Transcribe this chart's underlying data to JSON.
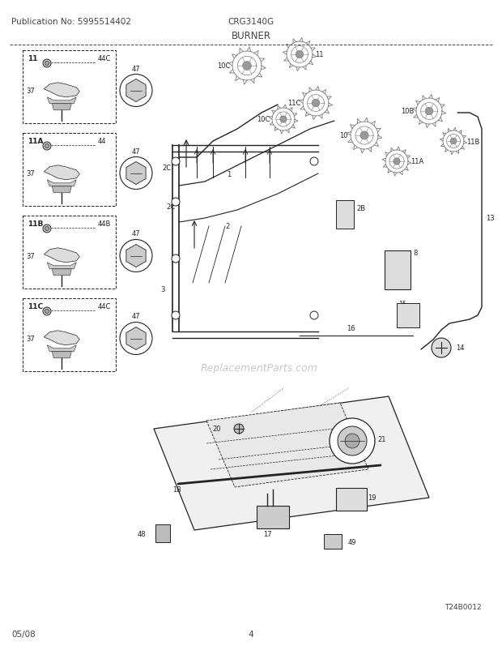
{
  "title": "BURNER",
  "pub_no": "Publication No: 5995514402",
  "model": "CRG3140G",
  "page": "4",
  "date": "05/08",
  "diagram_ref": "T24B0012",
  "bg_color": "#ffffff",
  "lc": "#444444",
  "lc_dark": "#222222",
  "gray1": "#bbbbbb",
  "gray2": "#999999",
  "gray3": "#777777",
  "fs_label": 6.0,
  "fs_header": 7.5,
  "fs_title": 8.5
}
